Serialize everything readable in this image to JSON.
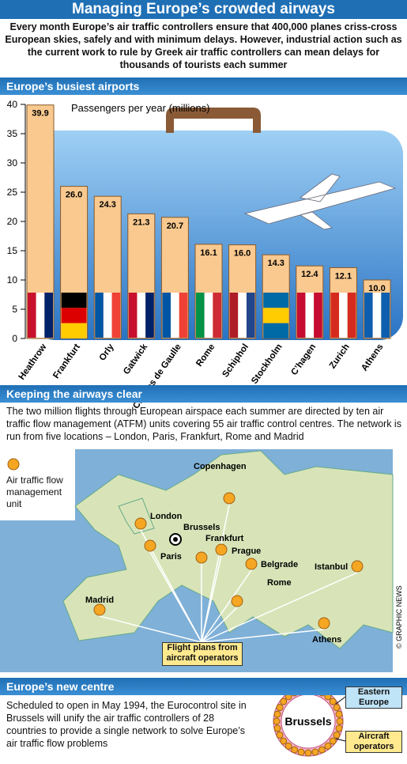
{
  "header": {
    "title": "Managing Europe’s crowded airways",
    "intro": "Every month Europe’s air traffic controllers ensure that 400,000 planes criss-cross European skies, safely and with minimum delays. However, industrial action such as the current work to rule by Greek air traffic controllers can mean delays for thousands of tourists each summer"
  },
  "chart_data": {
    "type": "bar",
    "title": "Europe’s busiest airports",
    "y_label": "Passengers per year (millions)",
    "categories": [
      "Heathrow",
      "Frankfurt",
      "Orly",
      "Gatwick",
      "Charles de Gaulle",
      "Rome",
      "Schiphol",
      "Stockholm",
      "C’hagen",
      "Zurich",
      "Athens"
    ],
    "values": [
      39.9,
      26.0,
      24.3,
      21.3,
      20.7,
      16.1,
      16.0,
      14.3,
      12.4,
      12.1,
      10.0
    ],
    "value_labels": [
      "39.9",
      "26.0",
      "24.3",
      "21.3",
      "20.7",
      "16.1",
      "16.0",
      "14.3",
      "12.4",
      "12.1",
      "10.0"
    ],
    "color": "#f9c98f",
    "ylim": [
      0,
      40
    ],
    "yticks": [
      0,
      5,
      10,
      15,
      20,
      25,
      30,
      35,
      40
    ]
  },
  "airways": {
    "title": "Keeping the airways clear",
    "text": "The two million flights through European airspace each summer are directed by ten air traffic flow management (ATFM) units covering 55 air traffic control centres. The network is run from five locations – London, Paris, Frankfurt, Rome and Madrid",
    "legend": "Air traffic flow management unit",
    "cities": [
      "Copenhagen",
      "London",
      "Brussels",
      "Paris",
      "Frankfurt",
      "Prague",
      "Belgrade",
      "Istanbul",
      "Rome",
      "Madrid",
      "Athens"
    ],
    "box": "Flight plans from aircraft operators",
    "credit": "© GRAPHIC NEWS"
  },
  "centre": {
    "title": "Europe’s new centre",
    "text": "Scheduled to open in May 1994, the Eurocontrol site in Brussels will unify the air traffic controllers of 28 countries to provide a single network to solve Europe’s air traffic flow problems",
    "hub": "Brussels",
    "east": "Eastern Europe",
    "operators": "Aircraft operators"
  }
}
